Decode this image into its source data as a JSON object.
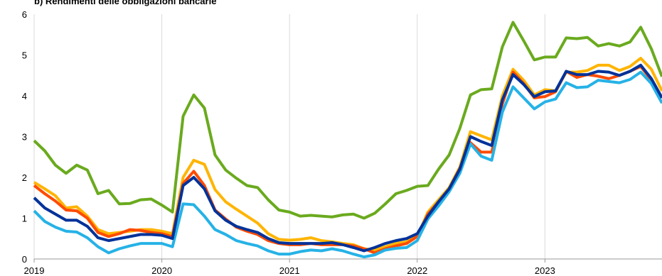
{
  "chart_data": {
    "type": "line",
    "title": "b) Rendimenti delle obbligazioni bancarie",
    "x": [
      0,
      1,
      2,
      3,
      4,
      5,
      6,
      7,
      8,
      9,
      10,
      11,
      12,
      13,
      14,
      15,
      16,
      17,
      18,
      19,
      20,
      21,
      22,
      23,
      24,
      25,
      26,
      27,
      28,
      29,
      30,
      31,
      32,
      33,
      34,
      35,
      36,
      37,
      38,
      39,
      40,
      41,
      42,
      43,
      44,
      45,
      46,
      47,
      48,
      49,
      50,
      51,
      52,
      53,
      54,
      55,
      56,
      57,
      58,
      59
    ],
    "xlim": [
      0,
      59
    ],
    "xticks": [
      {
        "value": 0,
        "label": "2019"
      },
      {
        "value": 12,
        "label": "2020"
      },
      {
        "value": 24,
        "label": "2021"
      },
      {
        "value": 36,
        "label": "2022"
      },
      {
        "value": 48,
        "label": "2023"
      }
    ],
    "ylim": [
      0,
      6
    ],
    "yticks": [
      0,
      1,
      2,
      3,
      4,
      5,
      6
    ],
    "grid": "x",
    "series": [
      {
        "color": "#6aaa1e",
        "values": [
          2.9,
          2.65,
          2.3,
          2.1,
          2.3,
          2.18,
          1.6,
          1.68,
          1.35,
          1.36,
          1.45,
          1.47,
          1.32,
          1.15,
          3.5,
          4.02,
          3.7,
          2.55,
          2.18,
          1.98,
          1.8,
          1.75,
          1.45,
          1.2,
          1.15,
          1.05,
          1.07,
          1.05,
          1.03,
          1.08,
          1.1,
          1.0,
          1.12,
          1.35,
          1.6,
          1.68,
          1.78,
          1.8,
          2.2,
          2.55,
          3.2,
          4.02,
          4.15,
          4.17,
          5.2,
          5.8,
          5.35,
          4.88,
          4.95,
          4.95,
          5.42,
          5.4,
          5.43,
          5.22,
          5.28,
          5.22,
          5.32,
          5.68,
          5.15,
          4.47
        ]
      },
      {
        "color": "#ffb400",
        "values": [
          1.88,
          1.72,
          1.55,
          1.25,
          1.28,
          1.05,
          0.72,
          0.62,
          0.65,
          0.68,
          0.72,
          0.72,
          0.68,
          0.62,
          2.0,
          2.42,
          2.32,
          1.7,
          1.4,
          1.22,
          1.05,
          0.88,
          0.62,
          0.48,
          0.46,
          0.48,
          0.52,
          0.45,
          0.42,
          0.38,
          0.35,
          0.25,
          0.22,
          0.3,
          0.38,
          0.42,
          0.55,
          1.15,
          1.45,
          1.75,
          2.25,
          3.12,
          3.02,
          2.92,
          4.0,
          4.65,
          4.38,
          4.02,
          4.15,
          4.12,
          4.58,
          4.58,
          4.62,
          4.75,
          4.75,
          4.62,
          4.72,
          4.92,
          4.65,
          4.12
        ]
      },
      {
        "color": "#ff4b00",
        "values": [
          1.8,
          1.6,
          1.42,
          1.2,
          1.18,
          1.0,
          0.65,
          0.55,
          0.62,
          0.72,
          0.7,
          0.65,
          0.62,
          0.55,
          1.85,
          2.15,
          1.8,
          1.2,
          0.98,
          0.78,
          0.68,
          0.6,
          0.45,
          0.38,
          0.35,
          0.35,
          0.38,
          0.35,
          0.35,
          0.35,
          0.32,
          0.25,
          0.15,
          0.25,
          0.32,
          0.38,
          0.55,
          1.1,
          1.4,
          1.72,
          2.22,
          2.85,
          2.62,
          2.62,
          3.8,
          4.58,
          4.3,
          3.95,
          3.98,
          4.1,
          4.6,
          4.45,
          4.52,
          4.48,
          4.42,
          4.5,
          4.6,
          4.72,
          4.38,
          3.95
        ]
      },
      {
        "color": "#26b2e6",
        "values": [
          1.18,
          0.92,
          0.78,
          0.68,
          0.66,
          0.52,
          0.3,
          0.15,
          0.25,
          0.32,
          0.38,
          0.38,
          0.38,
          0.3,
          1.35,
          1.33,
          1.05,
          0.72,
          0.6,
          0.45,
          0.38,
          0.32,
          0.2,
          0.12,
          0.12,
          0.18,
          0.22,
          0.2,
          0.25,
          0.2,
          0.12,
          0.05,
          0.1,
          0.22,
          0.26,
          0.28,
          0.45,
          0.98,
          1.3,
          1.65,
          2.1,
          2.82,
          2.52,
          2.42,
          3.6,
          4.22,
          3.95,
          3.68,
          3.85,
          3.92,
          4.32,
          4.2,
          4.22,
          4.38,
          4.35,
          4.32,
          4.4,
          4.58,
          4.3,
          3.82
        ]
      },
      {
        "color": "#003299",
        "values": [
          1.5,
          1.25,
          1.1,
          0.95,
          0.95,
          0.8,
          0.52,
          0.45,
          0.5,
          0.55,
          0.6,
          0.6,
          0.58,
          0.5,
          1.8,
          2.0,
          1.72,
          1.18,
          0.95,
          0.8,
          0.72,
          0.65,
          0.5,
          0.4,
          0.38,
          0.38,
          0.38,
          0.38,
          0.4,
          0.35,
          0.28,
          0.2,
          0.28,
          0.38,
          0.45,
          0.5,
          0.62,
          1.05,
          1.4,
          1.72,
          2.2,
          3.0,
          2.88,
          2.78,
          3.9,
          4.52,
          4.28,
          3.98,
          4.1,
          4.12,
          4.6,
          4.52,
          4.52,
          4.6,
          4.58,
          4.5,
          4.6,
          4.75,
          4.42,
          3.95
        ]
      }
    ]
  }
}
